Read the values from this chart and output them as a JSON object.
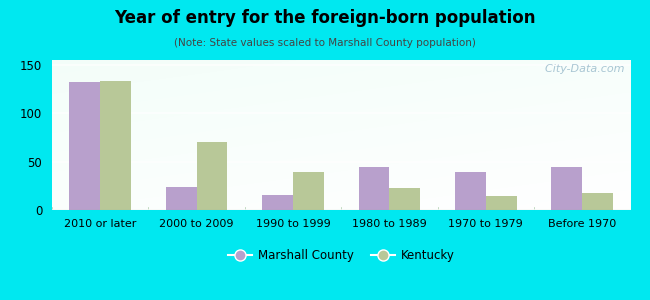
{
  "title": "Year of entry for the foreign-born population",
  "subtitle": "(Note: State values scaled to Marshall County population)",
  "categories": [
    "2010 or later",
    "2000 to 2009",
    "1990 to 1999",
    "1980 to 1989",
    "1970 to 1979",
    "Before 1970"
  ],
  "marshall_county": [
    132,
    24,
    15,
    44,
    39,
    44
  ],
  "kentucky": [
    133,
    70,
    39,
    23,
    14,
    18
  ],
  "marshall_color": "#b8a0cc",
  "kentucky_color": "#b8c898",
  "background_color": "#00e8f0",
  "ylim": [
    0,
    155
  ],
  "yticks": [
    0,
    50,
    100,
    150
  ],
  "bar_width": 0.32,
  "legend_labels": [
    "Marshall County",
    "Kentucky"
  ],
  "watermark": "  City-Data.com"
}
